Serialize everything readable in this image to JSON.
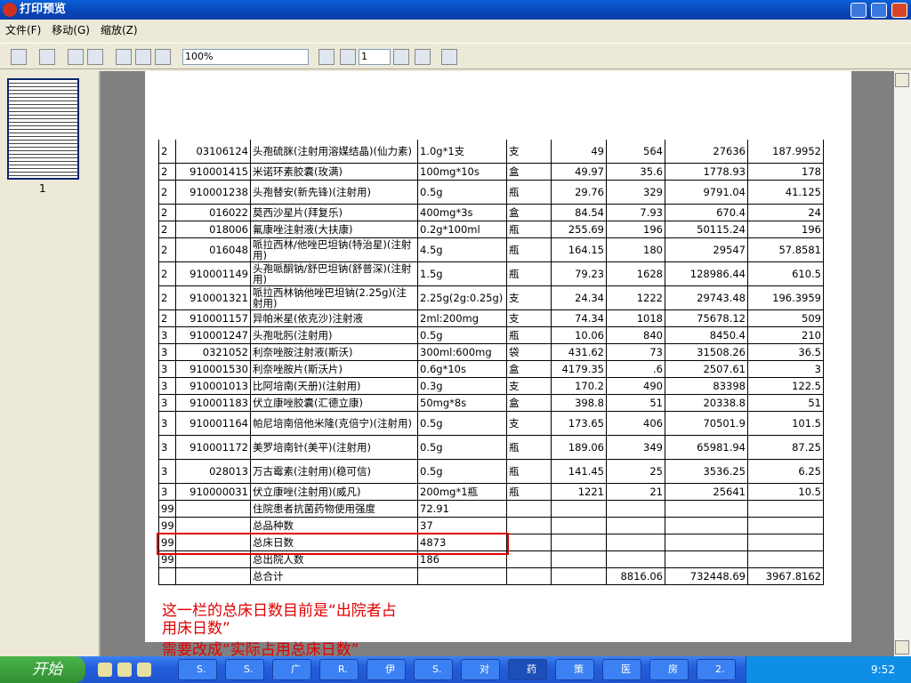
{
  "window": {
    "title": "打印预览"
  },
  "menu": [
    "文件(F)",
    "移动(G)",
    "缩放(Z)"
  ],
  "toolbar": {
    "zoom": "100%",
    "page": "1"
  },
  "thumbnail": {
    "label": "1"
  },
  "table": {
    "rows": [
      [
        "2",
        "03106124",
        "头孢硫脒(注射用溶媒结晶)(仙力素)",
        "1.0g*1支",
        "支",
        "49",
        "564",
        "27636",
        "187.9952"
      ],
      [
        "2",
        "910001415",
        "米诺环素胶囊(玫满)",
        "100mg*10s",
        "盒",
        "49.97",
        "35.6",
        "1778.93",
        "178"
      ],
      [
        "2",
        "910001238",
        "头孢替安(新先锋)(注射用)",
        "0.5g",
        "瓶",
        "29.76",
        "329",
        "9791.04",
        "41.125"
      ],
      [
        "2",
        "016022",
        "莫西沙星片(拜复乐)",
        "400mg*3s",
        "盒",
        "84.54",
        "7.93",
        "670.4",
        "24"
      ],
      [
        "2",
        "018006",
        "氟康唑注射液(大扶康)",
        "0.2g*100ml",
        "瓶",
        "255.69",
        "196",
        "50115.24",
        "196"
      ],
      [
        "2",
        "016048",
        "哌拉西林/他唑巴坦钠(特治星)(注射用)",
        "4.5g",
        "瓶",
        "164.15",
        "180",
        "29547",
        "57.8581"
      ],
      [
        "2",
        "910001149",
        "头孢哌酮钠/舒巴坦钠(舒普深)(注射用)",
        "1.5g",
        "瓶",
        "79.23",
        "1628",
        "128986.44",
        "610.5"
      ],
      [
        "2",
        "910001321",
        "哌拉西林钠他唑巴坦钠(2.25g)(注射用)",
        "2.25g(2g:0.25g)",
        "支",
        "24.34",
        "1222",
        "29743.48",
        "196.3959"
      ],
      [
        "2",
        "910001157",
        "异帕米星(依克沙)注射液",
        "2ml:200mg",
        "支",
        "74.34",
        "1018",
        "75678.12",
        "509"
      ],
      [
        "3",
        "910001247",
        "头孢吡肟(注射用)",
        "0.5g",
        "瓶",
        "10.06",
        "840",
        "8450.4",
        "210"
      ],
      [
        "3",
        "0321052",
        "利奈唑胺注射液(斯沃)",
        "300ml:600mg",
        "袋",
        "431.62",
        "73",
        "31508.26",
        "36.5"
      ],
      [
        "3",
        "910001530",
        "利奈唑胺片(斯沃片)",
        "0.6g*10s",
        "盒",
        "4179.35",
        ".6",
        "2507.61",
        "3"
      ],
      [
        "3",
        "910001013",
        "比阿培南(天册)(注射用)",
        "0.3g",
        "支",
        "170.2",
        "490",
        "83398",
        "122.5"
      ],
      [
        "3",
        "910001183",
        "伏立康唑胶囊(汇德立康)",
        "50mg*8s",
        "盒",
        "398.8",
        "51",
        "20338.8",
        "51"
      ],
      [
        "3",
        "910001164",
        "帕尼培南倍他米隆(克倍宁)(注射用)",
        "0.5g",
        "支",
        "173.65",
        "406",
        "70501.9",
        "101.5"
      ],
      [
        "3",
        "910001172",
        "美罗培南针(美平)(注射用)",
        "0.5g",
        "瓶",
        "189.06",
        "349",
        "65981.94",
        "87.25"
      ],
      [
        "3",
        "028013",
        "万古霉素(注射用)(稳可信)",
        "0.5g",
        "瓶",
        "141.45",
        "25",
        "3536.25",
        "6.25"
      ],
      [
        "3",
        "910000031",
        "伏立康唑(注射用)(威凡)",
        "200mg*1瓶",
        "瓶",
        "1221",
        "21",
        "25641",
        "10.5"
      ],
      [
        "99",
        null,
        "住院患者抗菌药物使用强度",
        "72.91",
        null,
        null,
        null,
        null,
        null
      ],
      [
        "99",
        null,
        "总品种数",
        "37",
        null,
        null,
        null,
        null,
        null
      ],
      [
        "99",
        null,
        "总床日数",
        "4873",
        null,
        null,
        null,
        null,
        null
      ],
      [
        "99",
        null,
        "总出院人数",
        "186",
        null,
        null,
        null,
        null,
        null
      ],
      [
        null,
        null,
        "总合计",
        null,
        null,
        null,
        "8816.06",
        "732448.69",
        "3967.8162"
      ]
    ]
  },
  "annotation": [
    "这一栏的总床日数目前是“出院者占",
    "用床日数”",
    "需要改成“实际占用总床日数”"
  ],
  "taskbar": {
    "start": "开始",
    "items": [
      "S.",
      "S.",
      "广",
      "R.",
      "伊",
      "S.",
      "对",
      "药",
      "策",
      "医",
      "房",
      "2."
    ],
    "clock": "9:52"
  }
}
